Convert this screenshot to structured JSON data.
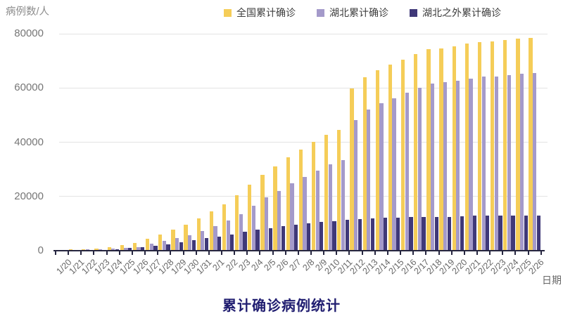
{
  "chart_data": {
    "type": "bar",
    "title": "累计确诊病例统计",
    "xlabel": "日期",
    "ylabel": "病例数/人",
    "ylim": [
      0,
      80000
    ],
    "y_ticks": [
      0,
      20000,
      40000,
      60000,
      80000
    ],
    "grid": true,
    "legend_position": "top",
    "categories": [
      "1/20",
      "1/21",
      "1/22",
      "1/23",
      "1/24",
      "1/25",
      "1/26",
      "1/27",
      "1/28",
      "1/29",
      "1/30",
      "1/31",
      "2/1",
      "2/2",
      "2/3",
      "2/4",
      "2/5",
      "2/6",
      "2/7",
      "2/8",
      "2/9",
      "2/10",
      "2/11",
      "2/12",
      "2/13",
      "2/14",
      "2/15",
      "2/16",
      "2/17",
      "2/18",
      "2/19",
      "2/20",
      "2/21",
      "2/22",
      "2/23",
      "2/24",
      "2/25",
      "2/26"
    ],
    "series": [
      {
        "key": "national",
        "name": "全国累计确诊",
        "color": "#F5CD58",
        "values": [
          291,
          440,
          571,
          830,
          1287,
          1975,
          2744,
          4515,
          5974,
          7711,
          9692,
          11791,
          14380,
          17205,
          20438,
          24324,
          28018,
          31161,
          34546,
          37198,
          40171,
          42638,
          44653,
          59804,
          63851,
          66492,
          68500,
          70548,
          72436,
          74185,
          74576,
          75465,
          76288,
          76936,
          77150,
          77658,
          78064,
          78497
        ]
      },
      {
        "key": "hubei",
        "name": "湖北累计确诊",
        "color": "#A49ACA",
        "values": [
          270,
          375,
          444,
          549,
          729,
          1052,
          1423,
          2714,
          3554,
          4586,
          5806,
          7153,
          9074,
          11177,
          13522,
          16678,
          19665,
          22112,
          24953,
          27100,
          29631,
          31728,
          33366,
          48206,
          51986,
          54406,
          56249,
          58182,
          59989,
          61682,
          62031,
          62662,
          63454,
          64084,
          64287,
          64786,
          65187,
          65596
        ]
      },
      {
        "key": "outside-hubei",
        "name": "湖北之外累计确诊",
        "color": "#3F3878",
        "values": [
          21,
          65,
          127,
          281,
          558,
          923,
          1321,
          1801,
          2420,
          3125,
          3886,
          4638,
          5306,
          6028,
          6916,
          7646,
          8353,
          9049,
          9593,
          10098,
          10540,
          10910,
          11287,
          11598,
          11865,
          12086,
          12251,
          12366,
          12447,
          12503,
          12545,
          12803,
          12834,
          12852,
          12863,
          12872,
          12877,
          12901
        ]
      }
    ],
    "colors": {
      "grid": "#e3e3e3",
      "axis": "#262640",
      "title_text": "#201d70",
      "tick_text": "#767676"
    }
  }
}
